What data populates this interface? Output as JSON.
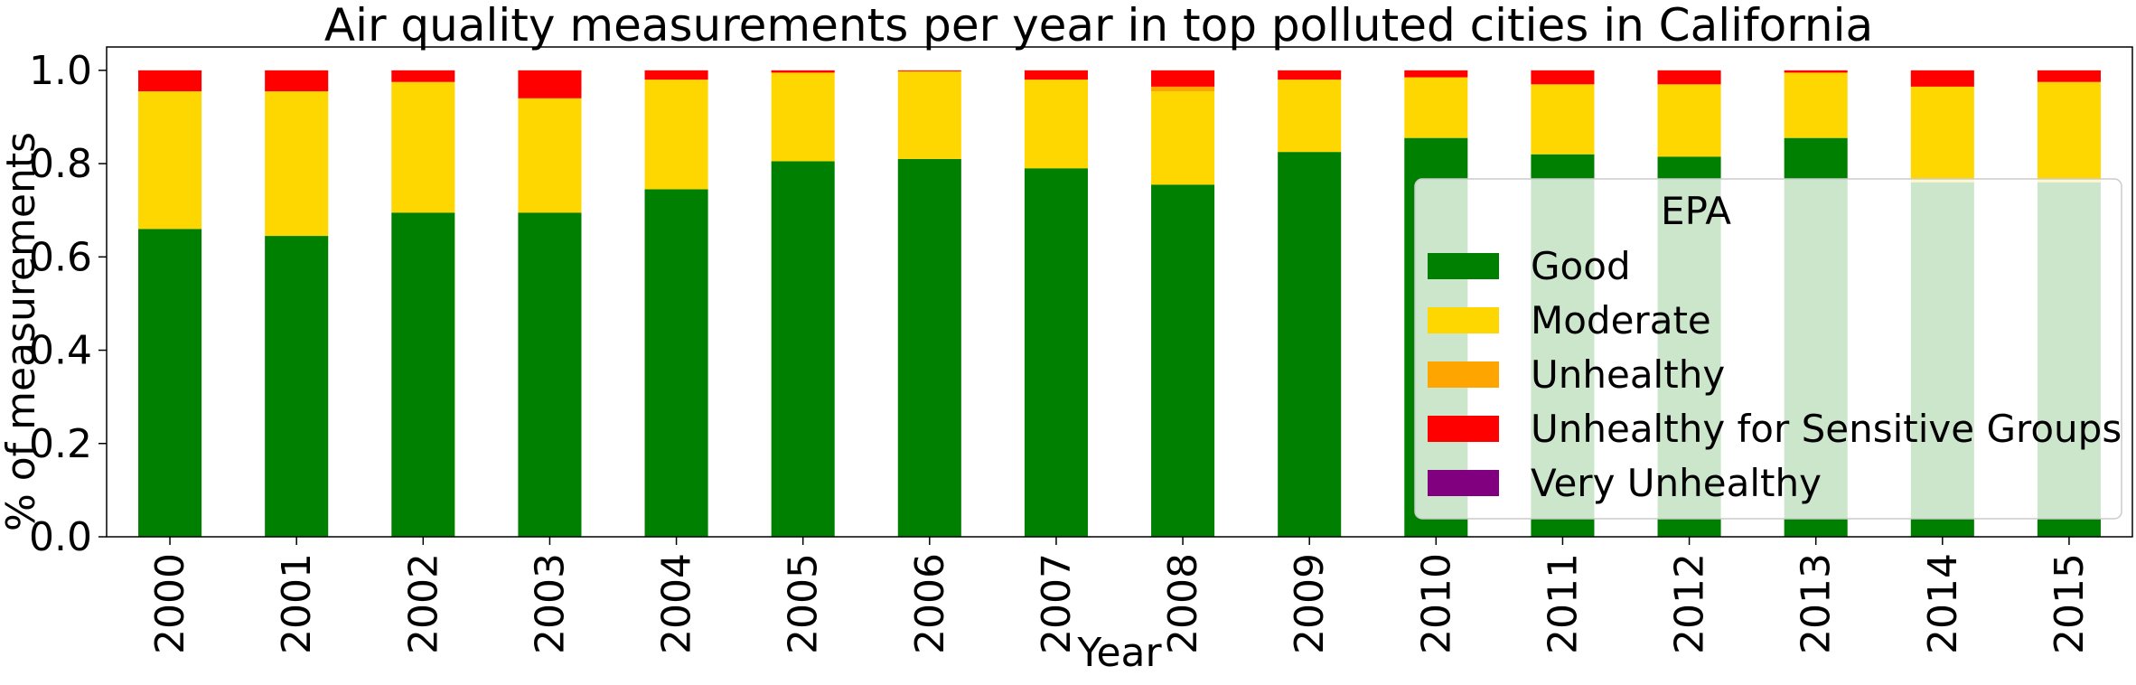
{
  "chart_data": {
    "type": "bar",
    "stacked": true,
    "title": "Air quality measurements per year in top polluted cities in California",
    "xlabel": "Year",
    "ylabel": "% of measurements",
    "ylim": [
      0,
      1.05
    ],
    "yticks": [
      "0.0",
      "0.2",
      "0.4",
      "0.6",
      "0.8",
      "1.0"
    ],
    "categories": [
      "2000",
      "2001",
      "2002",
      "2003",
      "2004",
      "2005",
      "2006",
      "2007",
      "2008",
      "2009",
      "2010",
      "2011",
      "2012",
      "2013",
      "2014",
      "2015"
    ],
    "series": [
      {
        "name": "Good",
        "color": "#008000",
        "values": [
          0.66,
          0.645,
          0.695,
          0.695,
          0.745,
          0.805,
          0.81,
          0.79,
          0.755,
          0.825,
          0.855,
          0.82,
          0.815,
          0.855,
          0.76,
          0.76
        ]
      },
      {
        "name": "Moderate",
        "color": "#ffd700",
        "values": [
          0.295,
          0.31,
          0.28,
          0.245,
          0.235,
          0.19,
          0.188,
          0.19,
          0.2,
          0.155,
          0.13,
          0.15,
          0.155,
          0.14,
          0.205,
          0.215
        ]
      },
      {
        "name": "Unhealthy",
        "color": "#ffa500",
        "values": [
          0,
          0,
          0,
          0,
          0,
          0,
          0,
          0,
          0.01,
          0,
          0,
          0,
          0,
          0,
          0,
          0
        ]
      },
      {
        "name": "Unhealthy for Sensitive Groups",
        "color": "#ff0000",
        "values": [
          0.045,
          0.045,
          0.025,
          0.06,
          0.02,
          0.005,
          0.002,
          0.02,
          0.035,
          0.02,
          0.015,
          0.03,
          0.03,
          0.005,
          0.035,
          0.025
        ]
      },
      {
        "name": "Very Unhealthy",
        "color": "#800080",
        "values": [
          0,
          0,
          0,
          0,
          0,
          0,
          0,
          0,
          0,
          0,
          0,
          0,
          0,
          0,
          0,
          0
        ]
      }
    ],
    "grid": false,
    "legend": {
      "title": "EPA",
      "placement": "lower-right"
    }
  }
}
